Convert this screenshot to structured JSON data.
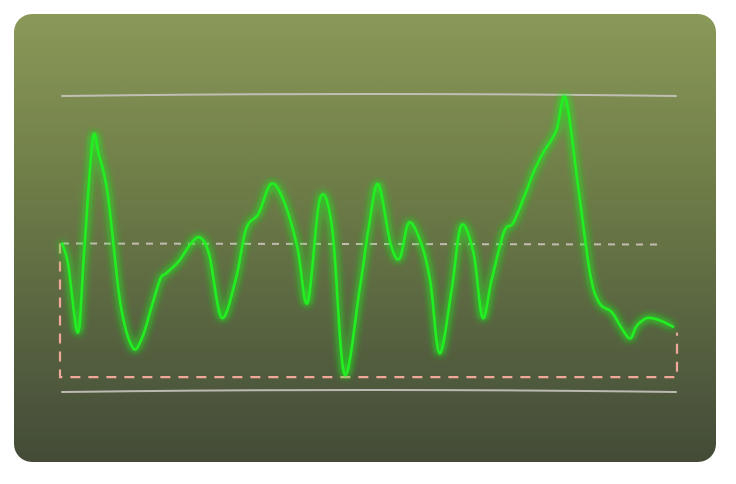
{
  "colors": {
    "panel_top": "#8a9958",
    "panel_bottom": "#434b37",
    "signal": "#22ee22",
    "reference_line": "#c9c4bf",
    "threshold_line": "#c9c0b8",
    "selection_box": "#f0a89a"
  },
  "chart_data": {
    "type": "line",
    "title": "",
    "xlabel": "",
    "ylabel": "",
    "grid": false,
    "legend": "none",
    "xlim": [
      0,
      100
    ],
    "ylim": [
      0,
      100
    ],
    "reference_lines": {
      "upper": 100,
      "lower": 0,
      "threshold": 50
    },
    "selection_box": {
      "x_range": [
        0,
        100
      ],
      "y_range": [
        5,
        50
      ]
    },
    "series": [
      {
        "x": [
          0,
          1,
          2.6,
          3.6,
          5,
          6,
          7.5,
          9.5,
          11.5,
          13,
          14.5,
          16,
          17,
          19,
          21,
          22.5,
          24,
          26,
          28.3,
          30,
          32,
          34,
          36,
          38.3,
          40,
          42,
          44,
          46,
          48.5,
          50,
          51.5,
          53.5,
          55,
          56.5,
          58.5,
          60,
          61.5,
          63.5,
          65,
          67,
          68.5,
          70,
          72,
          73.5,
          75.5,
          77,
          78.5,
          80.5,
          82,
          84,
          86,
          87.5,
          89.5,
          91,
          92.5,
          93.5,
          94.5,
          95.5,
          97.5,
          99.5
        ],
        "y": [
          50,
          43,
          20,
          47,
          85,
          80,
          66,
          30,
          15,
          18,
          28,
          38,
          40,
          44,
          50,
          52,
          46,
          25,
          38,
          55,
          60,
          70,
          65,
          49,
          30,
          65,
          55,
          6,
          35,
          56,
          70,
          50,
          45,
          57,
          50,
          37,
          13,
          35,
          56,
          47,
          25,
          38,
          54,
          57,
          67,
          75,
          81,
          88,
          99,
          70,
          40,
          30,
          27,
          22,
          18,
          22,
          24,
          25,
          24,
          22
        ]
      }
    ]
  }
}
